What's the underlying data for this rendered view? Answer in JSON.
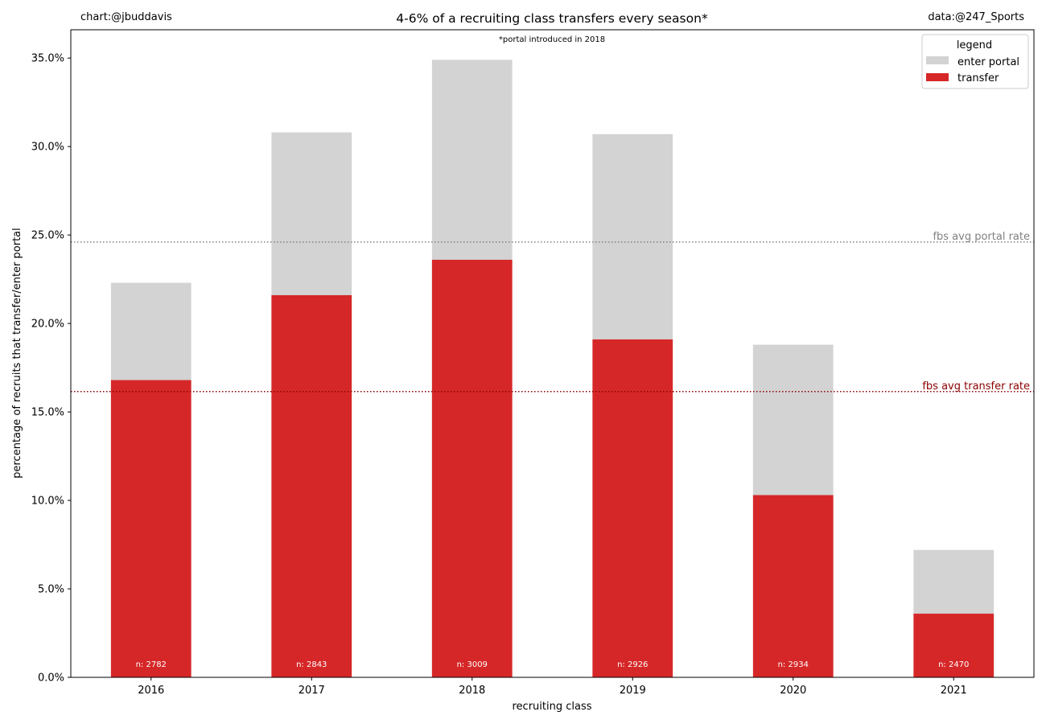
{
  "chart_data": {
    "type": "bar",
    "stacked": false,
    "title": "4-6% of a recruiting class transfers every season*",
    "subtitle": "*portal introduced in 2018",
    "credit_left": "chart:@jbuddavis",
    "credit_right": "data:@247_Sports",
    "xlabel": "recruiting class",
    "ylabel": "percentage of recruits that transfer/enter portal",
    "categories": [
      "2016",
      "2017",
      "2018",
      "2019",
      "2020",
      "2021"
    ],
    "series": [
      {
        "name": "enter portal",
        "color": "#d3d3d3",
        "values": [
          22.3,
          30.8,
          34.9,
          30.7,
          18.8,
          7.2
        ]
      },
      {
        "name": "transfer",
        "color": "#d62728",
        "values": [
          16.8,
          21.6,
          23.6,
          19.1,
          10.3,
          3.6
        ]
      }
    ],
    "bar_labels": [
      "n: 2782",
      "n: 2843",
      "n: 3009",
      "n: 2926",
      "n: 2934",
      "n: 2470"
    ],
    "ylim": [
      0,
      36.6
    ],
    "yticks": [
      0,
      5,
      10,
      15,
      20,
      25,
      30,
      35
    ],
    "ytick_labels": [
      "0.0%",
      "5.0%",
      "10.0%",
      "15.0%",
      "20.0%",
      "25.0%",
      "30.0%",
      "35.0%"
    ],
    "reference_lines": [
      {
        "label": "fbs avg portal rate",
        "value": 24.6,
        "color": "#808080"
      },
      {
        "label": "fbs avg transfer rate",
        "value": 16.15,
        "color": "#8b0000"
      }
    ],
    "legend": {
      "title": "legend",
      "position": "top-right",
      "entries": [
        "enter portal",
        "transfer"
      ]
    },
    "grid": false
  }
}
